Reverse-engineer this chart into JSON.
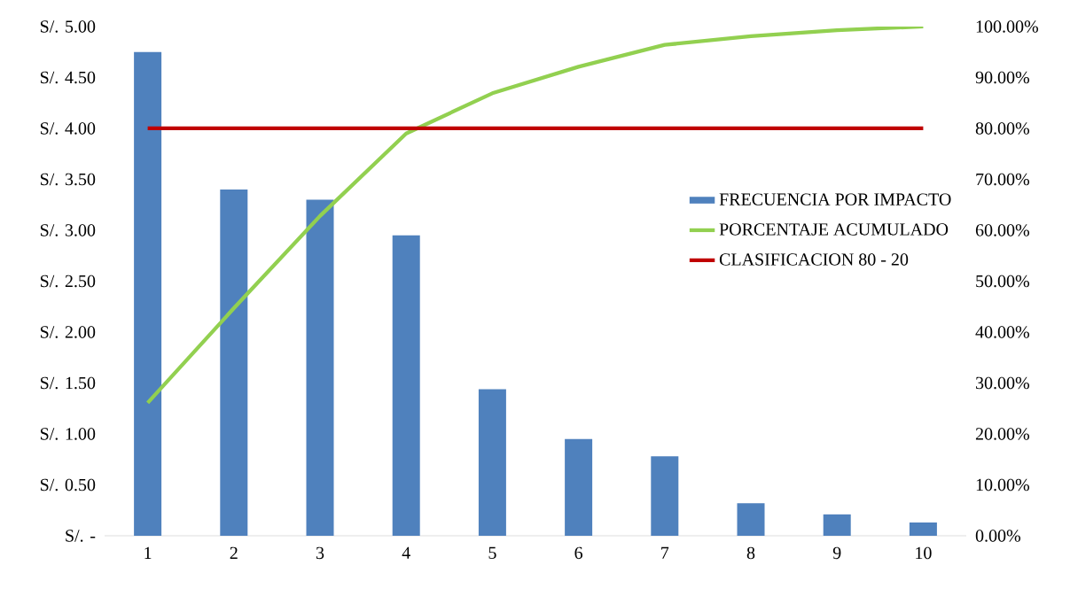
{
  "chart_data": {
    "type": "bar",
    "categories": [
      "1",
      "2",
      "3",
      "4",
      "5",
      "6",
      "7",
      "8",
      "9",
      "10"
    ],
    "series": [
      {
        "name": "FRECUENCIA POR IMPACTO",
        "color": "#4f81bd",
        "values": [
          4.75,
          3.4,
          3.3,
          2.95,
          1.44,
          0.95,
          0.78,
          0.32,
          0.21,
          0.13
        ]
      },
      {
        "name": "PORCENTAJE ACUMULADO",
        "type": "line",
        "axis": "y2",
        "color": "#92d050",
        "values": [
          26.1,
          44.7,
          62.8,
          79.0,
          86.9,
          92.1,
          96.4,
          98.1,
          99.3,
          100
        ]
      },
      {
        "name": "CLASIFICACION 80 - 20",
        "type": "line",
        "axis": "y2",
        "color": "#c00000",
        "values": [
          80,
          80,
          80,
          80,
          80,
          80,
          80,
          80,
          80,
          80
        ]
      }
    ],
    "ylim": [
      0,
      5
    ],
    "yticks": [
      {
        "value": 0,
        "label": "S/. -"
      },
      {
        "value": 0.5,
        "label": "S/. 0.50"
      },
      {
        "value": 1,
        "label": "S/. 1.00"
      },
      {
        "value": 1.5,
        "label": "S/. 1.50"
      },
      {
        "value": 2,
        "label": "S/. 2.00"
      },
      {
        "value": 2.5,
        "label": "S/. 2.50"
      },
      {
        "value": 3,
        "label": "S/. 3.00"
      },
      {
        "value": 3.5,
        "label": "S/. 3.50"
      },
      {
        "value": 4,
        "label": "S/. 4.00"
      },
      {
        "value": 4.5,
        "label": "S/. 4.50"
      },
      {
        "value": 5,
        "label": "S/. 5.00"
      }
    ],
    "y2lim": [
      0,
      100
    ],
    "y2ticks": [
      {
        "value": 0,
        "label": "0.00%"
      },
      {
        "value": 10,
        "label": "10.00%"
      },
      {
        "value": 20,
        "label": "20.00%"
      },
      {
        "value": 30,
        "label": "30.00%"
      },
      {
        "value": 40,
        "label": "40.00%"
      },
      {
        "value": 50,
        "label": "50.00%"
      },
      {
        "value": 60,
        "label": "60.00%"
      },
      {
        "value": 70,
        "label": "70.00%"
      },
      {
        "value": 80,
        "label": "80.00%"
      },
      {
        "value": 90,
        "label": "90.00%"
      },
      {
        "value": 100,
        "label": "100.00%"
      }
    ],
    "grid": false,
    "legend": "right"
  }
}
